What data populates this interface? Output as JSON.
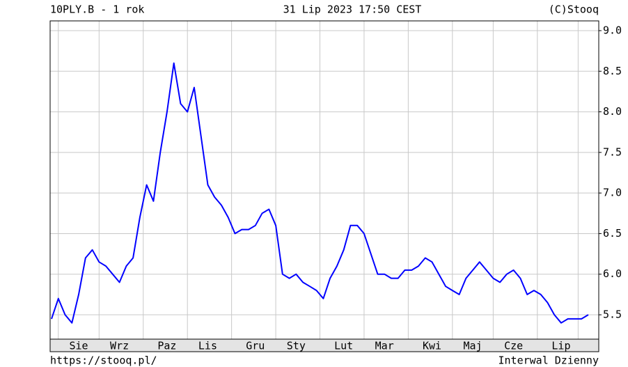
{
  "chart_data": {
    "type": "line",
    "title": "10PLY.B - 1 rok",
    "subtitle": "31 Lip 2023 17:50 CEST",
    "source": "(C)Stooq",
    "url": "https://stooq.pl/",
    "interval": "Interwal Dzienny",
    "categories": [
      null,
      null,
      null,
      null,
      "Sie",
      null,
      null,
      null,
      null,
      null,
      "Wrz",
      null,
      null,
      null,
      null,
      null,
      null,
      "Paz",
      null,
      null,
      null,
      null,
      null,
      "Lis",
      null,
      null,
      null,
      null,
      null,
      null,
      "Gru",
      null,
      null,
      null,
      null,
      null,
      "Sty",
      null,
      null,
      null,
      null,
      null,
      null,
      "Lut",
      null,
      null,
      null,
      null,
      null,
      "Mar",
      null,
      null,
      null,
      null,
      null,
      null,
      "Kwi",
      null,
      null,
      null,
      null,
      null,
      "Maj",
      null,
      null,
      null,
      null,
      null,
      "Cze",
      null,
      null,
      null,
      null,
      null,
      null,
      "Lip",
      null,
      null,
      null,
      null
    ],
    "series": [
      {
        "color": "#0000ff",
        "values": [
          5.45,
          5.7,
          5.5,
          5.4,
          5.75,
          6.2,
          6.3,
          6.15,
          6.1,
          6.0,
          5.9,
          6.1,
          6.2,
          6.7,
          7.1,
          6.9,
          7.5,
          8.0,
          8.6,
          8.1,
          8.0,
          8.3,
          7.7,
          7.1,
          6.95,
          6.85,
          6.7,
          6.5,
          6.55,
          6.55,
          6.6,
          6.75,
          6.8,
          6.6,
          6.0,
          5.95,
          6.0,
          5.9,
          5.85,
          5.8,
          5.7,
          5.95,
          6.1,
          6.3,
          6.6,
          6.6,
          6.5,
          6.25,
          6.0,
          6.0,
          5.95,
          5.95,
          6.05,
          6.05,
          6.1,
          6.2,
          6.15,
          6.0,
          5.85,
          5.8,
          5.75,
          5.95,
          6.05,
          6.15,
          6.05,
          5.95,
          5.9,
          6.0,
          6.05,
          5.95,
          5.75,
          5.8,
          5.75,
          5.65,
          5.5,
          5.4,
          5.45,
          5.45,
          5.45,
          5.5
        ]
      }
    ],
    "ylim": [
      5.2,
      9.12
    ],
    "yticks": [
      5.5,
      {
        "value": 6,
        "label": "6.0"
      },
      6.5,
      {
        "value": 7,
        "label": "7.0"
      },
      7.5,
      {
        "value": 8,
        "label": "8.0"
      },
      8.5,
      {
        "value": 9,
        "label": "9.0"
      }
    ],
    "grid": true
  }
}
